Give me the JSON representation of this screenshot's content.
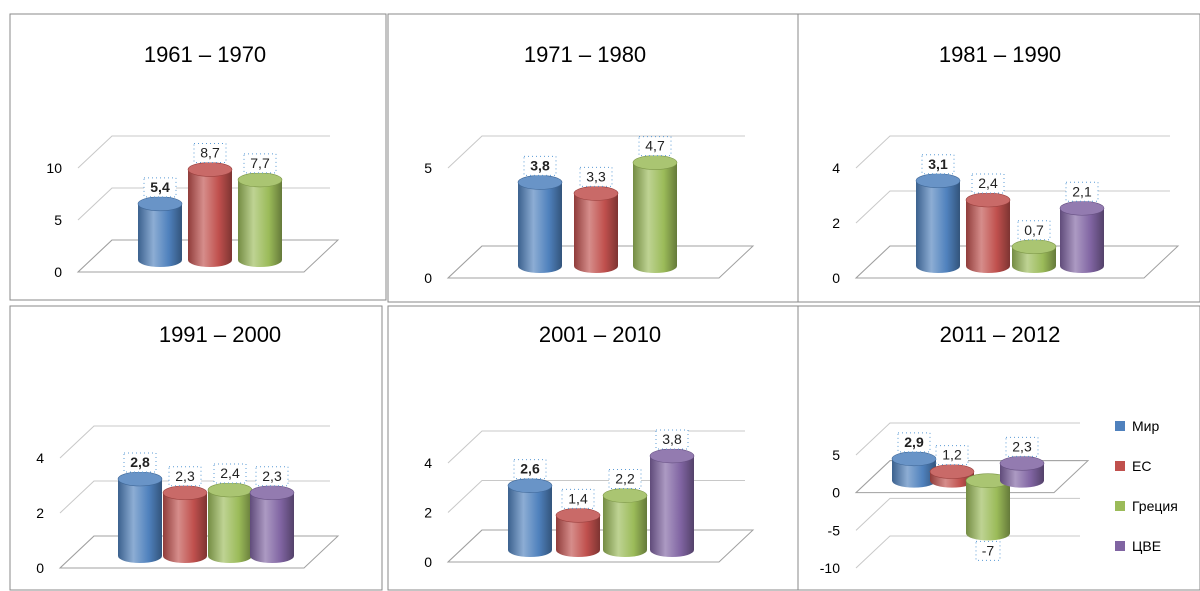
{
  "legend": {
    "items": [
      {
        "name": "Мир",
        "color": "#4f81bd"
      },
      {
        "name": "ЕС",
        "color": "#c0504d"
      },
      {
        "name": "Греция",
        "color": "#9bbb59"
      },
      {
        "name": "ЦВЕ",
        "color": "#8064a2"
      }
    ]
  },
  "chart_data": [
    {
      "type": "bar",
      "title": "1961 – 1970",
      "categories": [
        "Мир",
        "ЕС",
        "Греция"
      ],
      "values": [
        5.4,
        8.7,
        7.7
      ],
      "value_labels": [
        "5,4",
        "8,7",
        "7,7"
      ],
      "ylim": [
        0,
        10
      ],
      "yticks": [
        0,
        5,
        10
      ],
      "grid": true
    },
    {
      "type": "bar",
      "title": "1971 – 1980",
      "categories": [
        "Мир",
        "ЕС",
        "Греция"
      ],
      "values": [
        3.8,
        3.3,
        4.7
      ],
      "value_labels": [
        "3,8",
        "3,3",
        "4,7"
      ],
      "ylim": [
        0,
        5
      ],
      "yticks": [
        0,
        5
      ],
      "grid": true
    },
    {
      "type": "bar",
      "title": "1981 – 1990",
      "categories": [
        "Мир",
        "ЕС",
        "Греция",
        "ЦВЕ"
      ],
      "values": [
        3.1,
        2.4,
        0.7,
        2.1
      ],
      "value_labels": [
        "3,1",
        "2,4",
        "0,7",
        "2,1"
      ],
      "ylim": [
        0,
        4
      ],
      "yticks": [
        0,
        2,
        4
      ],
      "grid": true
    },
    {
      "type": "bar",
      "title": "1991 – 2000",
      "categories": [
        "Мир",
        "ЕС",
        "Греция",
        "ЦВЕ"
      ],
      "values": [
        2.8,
        2.3,
        2.4,
        2.3
      ],
      "value_labels": [
        "2,8",
        "2,3",
        "2,4",
        "2,3"
      ],
      "ylim": [
        0,
        4
      ],
      "yticks": [
        0,
        2,
        4
      ],
      "grid": true
    },
    {
      "type": "bar",
      "title": "2001 – 2010",
      "categories": [
        "Мир",
        "ЕС",
        "Греция",
        "ЦВЕ"
      ],
      "values": [
        2.6,
        1.4,
        2.2,
        3.8
      ],
      "value_labels": [
        "2,6",
        "1,4",
        "2,2",
        "3,8"
      ],
      "ylim": [
        0,
        4
      ],
      "yticks": [
        0,
        2,
        4
      ],
      "grid": true
    },
    {
      "type": "bar",
      "title": "2011 – 2012",
      "categories": [
        "Мир",
        "ЕС",
        "Греция",
        "ЦВЕ"
      ],
      "values": [
        2.9,
        1.2,
        -7,
        2.3
      ],
      "value_labels": [
        "2,9",
        "1,2",
        "-7",
        "2,3"
      ],
      "ylim": [
        -10,
        5
      ],
      "yticks": [
        -10,
        -5,
        0,
        5
      ],
      "grid": true,
      "legend": "right"
    }
  ]
}
